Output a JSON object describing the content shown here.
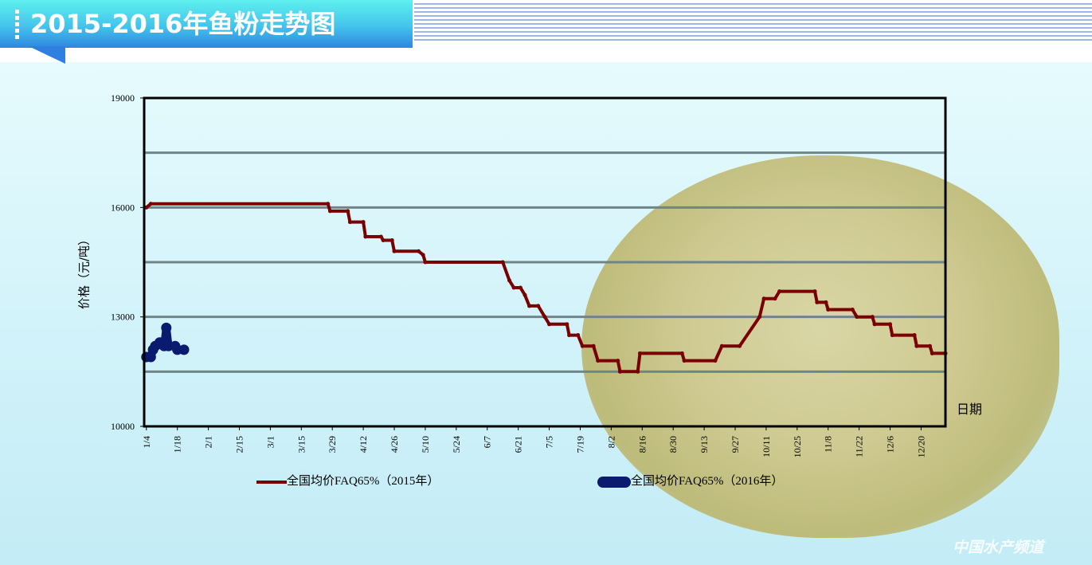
{
  "header": {
    "title": "2015-2016年鱼粉走势图"
  },
  "watermark": "中国水产频道",
  "colors": {
    "series2015": "#7a0000",
    "series2016": "#0a1a6e",
    "grid": "#6f8588",
    "banner": "#3aa8ea"
  },
  "chart_data": {
    "type": "line",
    "title": "",
    "xlabel": "日期",
    "ylabel": "价格（元/吨）",
    "ylim": [
      10000,
      19000
    ],
    "y_ticks": [
      10000,
      13000,
      16000,
      19000
    ],
    "y_gridlines": [
      11500,
      13000,
      14500,
      16000,
      17500
    ],
    "grid": true,
    "legend_position": "bottom",
    "x_ticks": [
      "1/4",
      "1/18",
      "2/1",
      "2/15",
      "3/1",
      "3/15",
      "3/29",
      "4/12",
      "4/26",
      "5/10",
      "5/24",
      "6/7",
      "6/21",
      "7/5",
      "7/19",
      "8/2",
      "8/16",
      "8/30",
      "9/13",
      "9/27",
      "10/11",
      "10/25",
      "11/8",
      "11/22",
      "12/6",
      "12/20"
    ],
    "series": [
      {
        "name": "全国均价FAQ65%（2015年）",
        "points": [
          [
            "1/4",
            16000
          ],
          [
            "1/6",
            16100
          ],
          [
            "3/27",
            16100
          ],
          [
            "3/28",
            15900
          ],
          [
            "4/5",
            15900
          ],
          [
            "4/6",
            15600
          ],
          [
            "4/12",
            15600
          ],
          [
            "4/13",
            15200
          ],
          [
            "4/20",
            15200
          ],
          [
            "4/21",
            15100
          ],
          [
            "4/25",
            15100
          ],
          [
            "4/26",
            14800
          ],
          [
            "5/7",
            14800
          ],
          [
            "5/9",
            14700
          ],
          [
            "5/10",
            14500
          ],
          [
            "6/14",
            14500
          ],
          [
            "6/17",
            14000
          ],
          [
            "6/19",
            13800
          ],
          [
            "6/22",
            13800
          ],
          [
            "6/24",
            13600
          ],
          [
            "6/26",
            13300
          ],
          [
            "6/30",
            13300
          ],
          [
            "7/3",
            13000
          ],
          [
            "7/5",
            12800
          ],
          [
            "7/13",
            12800
          ],
          [
            "7/14",
            12500
          ],
          [
            "7/18",
            12500
          ],
          [
            "7/20",
            12200
          ],
          [
            "7/25",
            12200
          ],
          [
            "7/27",
            11800
          ],
          [
            "8/5",
            11800
          ],
          [
            "8/6",
            11500
          ],
          [
            "8/14",
            11500
          ],
          [
            "8/15",
            12000
          ],
          [
            "9/3",
            12000
          ],
          [
            "9/4",
            11800
          ],
          [
            "9/18",
            11800
          ],
          [
            "9/21",
            12200
          ],
          [
            "9/29",
            12200
          ],
          [
            "10/8",
            13000
          ],
          [
            "10/10",
            13500
          ],
          [
            "10/15",
            13500
          ],
          [
            "10/17",
            13700
          ],
          [
            "11/2",
            13700
          ],
          [
            "11/3",
            13400
          ],
          [
            "11/7",
            13400
          ],
          [
            "11/8",
            13200
          ],
          [
            "11/19",
            13200
          ],
          [
            "11/21",
            13000
          ],
          [
            "11/28",
            13000
          ],
          [
            "11/29",
            12800
          ],
          [
            "12/6",
            12800
          ],
          [
            "12/7",
            12500
          ],
          [
            "12/17",
            12500
          ],
          [
            "12/18",
            12200
          ],
          [
            "12/24",
            12200
          ],
          [
            "12/25",
            12000
          ],
          [
            "12/31",
            12000
          ]
        ]
      },
      {
        "name": "全国均价FAQ65%（2016年）",
        "points": [
          [
            "1/4",
            11900
          ],
          [
            "1/6",
            11900
          ],
          [
            "1/7",
            12100
          ],
          [
            "1/8",
            12200
          ],
          [
            "1/10",
            12300
          ],
          [
            "1/12",
            12200
          ],
          [
            "1/13",
            12700
          ],
          [
            "1/14",
            12200
          ],
          [
            "1/17",
            12200
          ],
          [
            "1/18",
            12100
          ],
          [
            "1/21",
            12100
          ]
        ]
      }
    ]
  }
}
